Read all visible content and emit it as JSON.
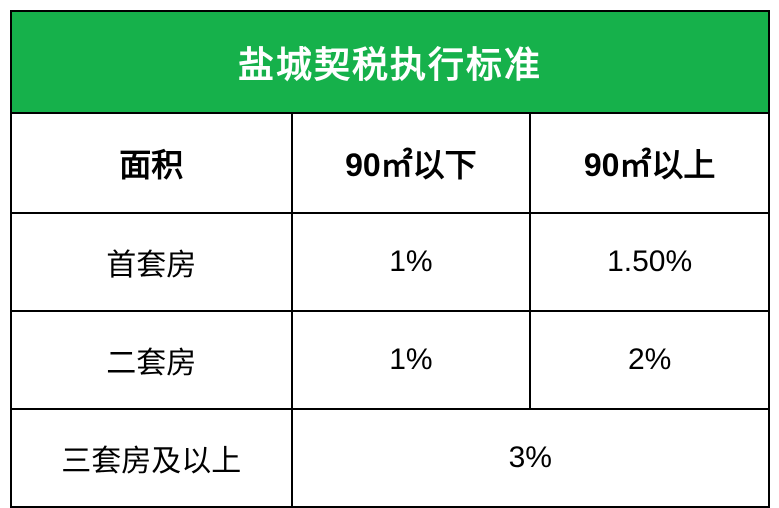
{
  "table": {
    "title": "盐城契税执行标准",
    "headers": {
      "area": "面积",
      "under90": "90㎡以下",
      "over90": "90㎡以上"
    },
    "rows": [
      {
        "label": "首套房",
        "under90": "1%",
        "over90": "1.50%"
      },
      {
        "label": "二套房",
        "under90": "1%",
        "over90": "2%"
      }
    ],
    "mergedRow": {
      "label": "三套房及以上",
      "value": "3%"
    },
    "colors": {
      "title_bg": "#16b14b",
      "title_text": "#ffffff",
      "border": "#000000",
      "text": "#000000"
    }
  }
}
